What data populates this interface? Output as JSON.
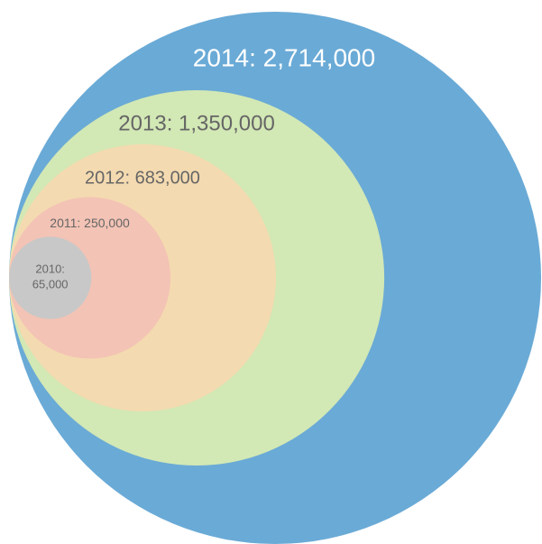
{
  "chart_data": {
    "type": "nested_circles",
    "values": [
      65000,
      250000,
      683000,
      1350000,
      2714000
    ],
    "value_labels": [
      "2010: 65,000",
      "2011: 250,000",
      "2012: 683,000",
      "2013: 1,350,000",
      "2014: 2,714,000"
    ],
    "colors": [
      "#c8c8c8",
      "#f3c3b5",
      "#f4dab0",
      "#d2e8b5",
      "#6aaad6"
    ]
  }
}
